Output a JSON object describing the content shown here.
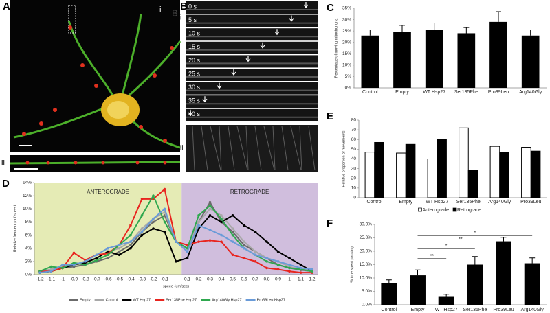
{
  "figure": {
    "panel_labels": [
      "A",
      "B",
      "C",
      "D",
      "E",
      "F"
    ],
    "A": {
      "sublabels": [
        "i",
        "ii"
      ],
      "inset_label": "B"
    },
    "B": {
      "sublabels": [
        "i",
        "ii"
      ],
      "timestamps": [
        "0 s",
        "5 s",
        "10 s",
        "15 s",
        "20 s",
        "25 s",
        "30 s",
        "35 s",
        "40 s"
      ]
    }
  },
  "chart_data": [
    {
      "type": "bar",
      "ylabel": "Percentage of moving mitochondria",
      "categories": [
        "Control",
        "Empty",
        "WT Hsp27",
        "Ser135Phe",
        "Pro39Leu",
        "Arg140Gly"
      ],
      "values": [
        23,
        24.5,
        25.5,
        24,
        29,
        23
      ],
      "errors": [
        2.5,
        3,
        3,
        2.5,
        4.5,
        2.5
      ],
      "color": "#000000",
      "ylim": [
        0,
        35
      ],
      "yticks": [
        {
          "value": 0,
          "label": "0%"
        },
        {
          "value": 5,
          "label": "5%"
        },
        {
          "value": 10,
          "label": "10%"
        },
        {
          "value": 15,
          "label": "15%"
        },
        {
          "value": 20,
          "label": "20%"
        },
        {
          "value": 25,
          "label": "25%"
        },
        {
          "value": 30,
          "label": "30%"
        },
        {
          "value": 35,
          "label": "35%"
        }
      ]
    },
    {
      "type": "line",
      "xlabel": "speed (um/sec)",
      "ylabel": "Relative frequency of speed",
      "annotations": [
        "ANTEROGRADE",
        "RETROGRADE"
      ],
      "regions": [
        "#e5ebb5",
        "#d0bedd"
      ],
      "categories": [
        "-1.2",
        "-1.1",
        "-1",
        "-0.9",
        "-0.8",
        "-0.7",
        "-0.6",
        "-0.5",
        "-0.4",
        "-0.3",
        "-0.2",
        "-0.1",
        null,
        "0.1",
        "0.2",
        "0.3",
        "0.4",
        "0.5",
        "0.6",
        "0.7",
        "0.8",
        "0.9",
        "1",
        "1.1",
        "1.2"
      ],
      "series": [
        {
          "name": "Empty",
          "color": "#6b6b6b",
          "values": [
            0.5,
            0.5,
            1,
            1.2,
            1.5,
            2,
            2.5,
            3.5,
            4.5,
            6.5,
            8,
            9,
            5,
            4,
            8,
            11,
            8,
            6.5,
            4.5,
            3.5,
            2.5,
            1.5,
            1,
            0.7,
            0.5
          ]
        },
        {
          "name": "Control",
          "color": "#a8a8a8",
          "values": [
            0.5,
            0.8,
            1.2,
            1.5,
            2,
            2.5,
            3.5,
            4,
            5,
            7,
            8.5,
            9.5,
            5,
            4,
            8,
            10,
            9,
            7,
            5,
            3.5,
            2.5,
            2,
            1.2,
            0.8,
            0.5
          ]
        },
        {
          "name": "WT Hsp27",
          "color": "#000000",
          "values": [
            0.3,
            0.5,
            1,
            1.5,
            1.8,
            2.5,
            3.5,
            3,
            4,
            6,
            7,
            6.5,
            2,
            2.5,
            7,
            9,
            8,
            9,
            7.5,
            6.5,
            5,
            3.5,
            2.5,
            1.5,
            0.5
          ]
        },
        {
          "name": "Ser135Phe Hsp27",
          "color": "#e8251f",
          "values": [
            0.5,
            0.5,
            1,
            3.3,
            2.2,
            3,
            3.2,
            4.5,
            7.5,
            11.5,
            11.5,
            13,
            5,
            4.5,
            5,
            5.2,
            5,
            3,
            2.5,
            2,
            1,
            0.8,
            0.5,
            0.3,
            0.3
          ]
        },
        {
          "name": "Arg140Gly Hsp27",
          "color": "#2fa84f",
          "values": [
            0.5,
            1.2,
            1,
            1.8,
            1.5,
            2.2,
            3,
            4.5,
            6,
            9,
            12,
            8,
            5,
            4,
            9,
            10.5,
            8.5,
            6,
            4,
            3,
            2,
            1.5,
            1,
            0.8,
            0.5
          ]
        },
        {
          "name": "Pro39Leu Hsp27",
          "color": "#6a9bd8",
          "values": [
            0.3,
            0.5,
            1.5,
            1.5,
            2,
            3,
            4,
            4.5,
            5,
            6.5,
            8.5,
            10,
            5,
            3.5,
            7.5,
            6.8,
            6,
            5,
            4,
            3,
            2.5,
            2,
            1.5,
            1,
            0.8
          ]
        }
      ],
      "ylim": [
        0,
        14
      ],
      "yticks": [
        {
          "value": 0,
          "label": "0%"
        },
        {
          "value": 2,
          "label": "2%"
        },
        {
          "value": 4,
          "label": "4%"
        },
        {
          "value": 6,
          "label": "6%"
        },
        {
          "value": 8,
          "label": "8%"
        },
        {
          "value": 10,
          "label": "10%"
        },
        {
          "value": 12,
          "label": "12%"
        },
        {
          "value": 14,
          "label": "14%"
        }
      ]
    },
    {
      "type": "bar",
      "ylabel": "Relative proportion of movements",
      "categories": [
        "Control",
        "Empty",
        "WT Hsp27",
        "Ser135Phe",
        "Arg140Gly",
        "Pro39Leu"
      ],
      "series": [
        {
          "name": "Anterograde",
          "color": "#ffffff",
          "values": [
            47,
            46,
            40,
            72,
            53,
            52
          ]
        },
        {
          "name": "Retrograde",
          "color": "#000000",
          "values": [
            57,
            55,
            60,
            28,
            47,
            48
          ]
        }
      ],
      "ylim": [
        0,
        80
      ],
      "yticks": [
        0,
        10,
        20,
        30,
        40,
        50,
        60,
        70,
        80
      ]
    },
    {
      "type": "bar",
      "ylabel": "% time spent pausing",
      "categories": [
        "Control",
        "Empty",
        "WT Hsp27",
        "Ser135Phe",
        "Pro39Leu",
        "Arg140Gly"
      ],
      "values": [
        8,
        11,
        3.2,
        15,
        23.7,
        15.5
      ],
      "errors": [
        1.3,
        2,
        0.7,
        3,
        1.5,
        2
      ],
      "color": "#000000",
      "ylim": [
        0,
        30
      ],
      "yticks": [
        {
          "value": 0,
          "label": "0.0%"
        },
        {
          "value": 5,
          "label": "5.0%"
        },
        {
          "value": 10,
          "label": "10.0%"
        },
        {
          "value": 15,
          "label": "15.0%"
        },
        {
          "value": 20,
          "label": "20.0%"
        },
        {
          "value": 25,
          "label": "25.0%"
        },
        {
          "value": 30,
          "label": "30.0%"
        }
      ],
      "significance": [
        {
          "from": "Empty",
          "to": "WT Hsp27",
          "label": "**"
        },
        {
          "from": "Empty",
          "to": "Ser135Phe",
          "label": "*"
        },
        {
          "from": "Empty",
          "to": "Pro39Leu",
          "label": "**"
        },
        {
          "from": "Empty",
          "to": "Arg140Gly",
          "label": "*"
        }
      ]
    }
  ]
}
